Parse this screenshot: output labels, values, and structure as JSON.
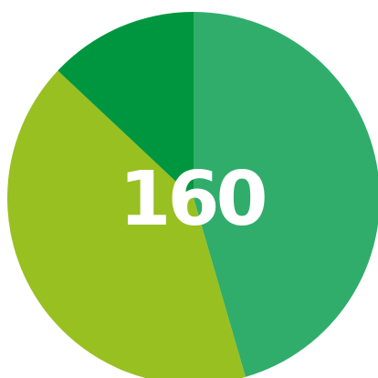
{
  "chart_data": {
    "type": "pie",
    "title": "",
    "center_label": "160",
    "start_angle_deg": 0,
    "direction": "clockwise",
    "slices": [
      {
        "value": 45.5,
        "color": "#30ad6b"
      },
      {
        "value": 41.5,
        "color": "#98c020"
      },
      {
        "value": 13.0,
        "color": "#00963f"
      }
    ]
  }
}
